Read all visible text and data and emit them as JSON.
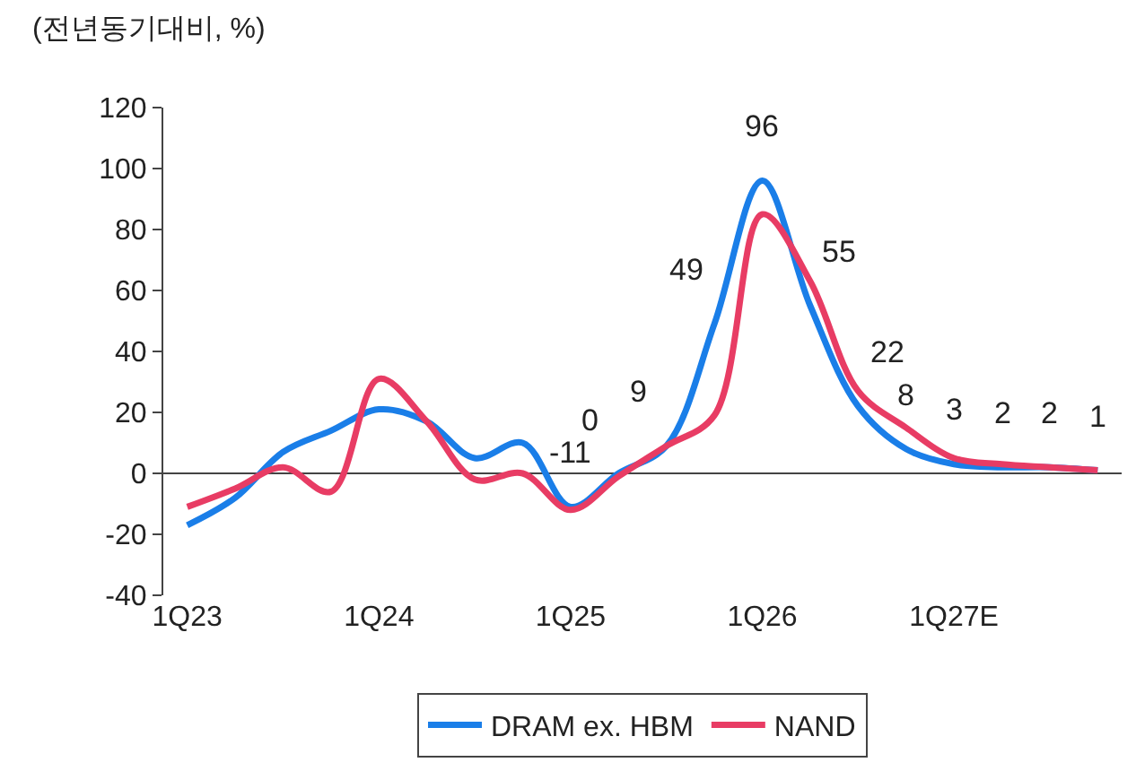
{
  "chart_data": {
    "type": "line",
    "ylabel": "(전년동기대비, %)",
    "categories": [
      "1Q23",
      null,
      null,
      null,
      "1Q24",
      null,
      null,
      null,
      "1Q25",
      null,
      null,
      null,
      "1Q26",
      null,
      null,
      null,
      "1Q27E",
      null,
      null,
      null
    ],
    "series": [
      {
        "name": "DRAM ex. HBM",
        "color": "#1a7ee8",
        "values": [
          -17,
          -8,
          7,
          14,
          21,
          17,
          5,
          10,
          -11,
          0,
          9,
          49,
          96,
          55,
          22,
          8,
          3,
          2,
          2,
          1
        ],
        "value_labels": [
          null,
          null,
          null,
          null,
          null,
          null,
          null,
          null,
          "-11",
          "0",
          "9",
          "49",
          "96",
          "55",
          "22",
          "8",
          "3",
          "2",
          "2",
          "1"
        ]
      },
      {
        "name": "NAND",
        "color": "#e83c64",
        "values": [
          -11,
          -5,
          2,
          -6,
          31,
          17,
          -2,
          0,
          -12,
          -1,
          9,
          19,
          85,
          63,
          27,
          15,
          5,
          3,
          2,
          1
        ]
      }
    ],
    "ylim": [
      -40,
      120
    ],
    "yticks": [
      -40,
      -20,
      0,
      20,
      40,
      60,
      80,
      100,
      120
    ],
    "grid": false,
    "ref_lines": [
      {
        "axis": "y",
        "value": 0,
        "color": "#444444"
      }
    ],
    "legend": "bottom",
    "marker": "none",
    "line_style": "solid"
  }
}
